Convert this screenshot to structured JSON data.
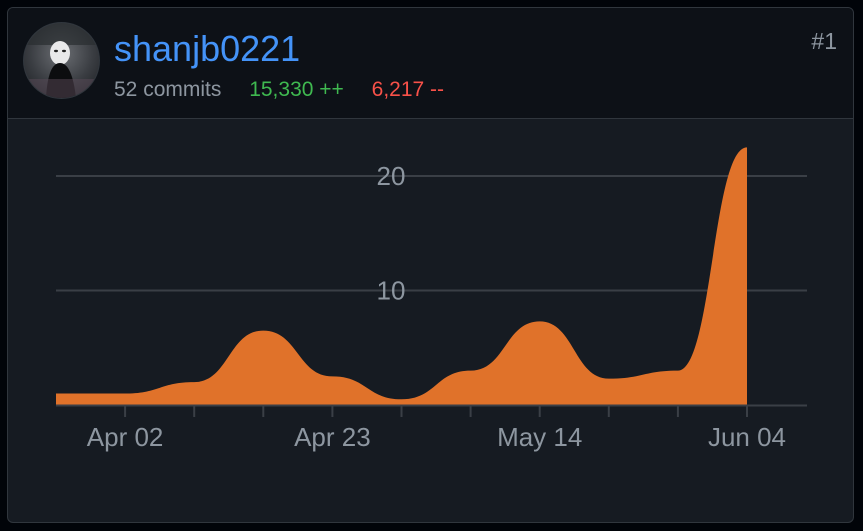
{
  "contributor": {
    "username": "shanjb0221",
    "rank": "#1",
    "commits_label": "52 commits",
    "additions_label": "15,330 ++",
    "deletions_label": "6,217 --",
    "avatar_icon": "avatar-image-icon"
  },
  "colors": {
    "username": "#4493f8",
    "additions": "#3fb950",
    "deletions": "#f85149",
    "area_fill": "#e0722a",
    "grid": "#3a3f46"
  },
  "chart_data": {
    "type": "area",
    "x": [
      "2023-03-26",
      "2023-04-02",
      "2023-04-09",
      "2023-04-16",
      "2023-04-23",
      "2023-04-30",
      "2023-05-07",
      "2023-05-14",
      "2023-05-21",
      "2023-05-28",
      "2023-06-04"
    ],
    "x_tick_labels": [
      "Apr 02",
      "Apr 23",
      "May 14",
      "Jun 04"
    ],
    "y_tick_labels": [
      "10",
      "20"
    ],
    "series": [
      {
        "values": [
          1,
          1,
          2,
          6.5,
          2.5,
          0.5,
          3,
          7.3,
          2.3,
          3,
          22.5
        ]
      }
    ],
    "ylim": [
      0,
      25
    ],
    "grid": true
  }
}
